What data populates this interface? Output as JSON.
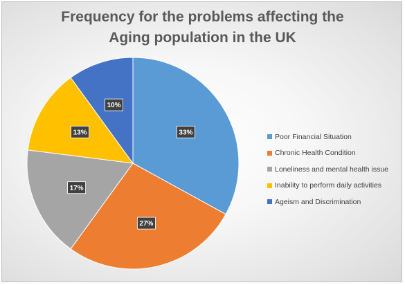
{
  "chart_data": {
    "type": "pie",
    "title_lines": [
      "Frequency for the problems affecting the",
      "Aging population in the UK"
    ],
    "categories": [
      "Poor Financial Situation",
      "Chronic Health Condition",
      "Loneliness and mental health issue",
      "Inability to perform daily activities",
      "Ageism and Discrimination"
    ],
    "values": [
      33,
      27,
      17,
      13,
      10
    ],
    "data_labels": [
      "33%",
      "27%",
      "17%",
      "13%",
      "10%"
    ],
    "colors": [
      "#5b9bd5",
      "#ed7d31",
      "#a5a5a5",
      "#ffc000",
      "#4472c4"
    ],
    "start_angle_deg": 0,
    "direction": "clockwise",
    "legend_position": "right",
    "background": "radial-gradient light gray"
  }
}
